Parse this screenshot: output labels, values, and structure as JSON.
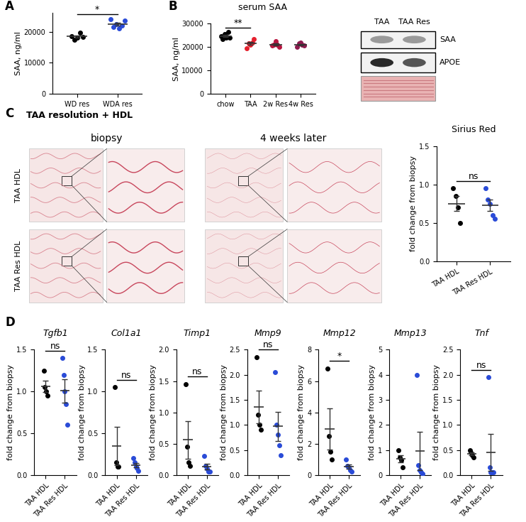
{
  "panel_labels": [
    "A",
    "B",
    "C",
    "D"
  ],
  "chart_data": [
    {
      "type": "scatter",
      "ylabel": "SAA, ng/ml",
      "categories": [
        "WD res",
        "WDA res"
      ],
      "colors": [
        "#000000",
        "#2a4bd7"
      ],
      "marker": "circle",
      "values": [
        [
          18500,
          17500,
          18200,
          19800,
          18400
        ],
        [
          24000,
          21500,
          22500,
          21000,
          22000,
          23500
        ]
      ],
      "means": [
        18480,
        22417
      ],
      "errors": [
        373,
        473
      ],
      "ylim": [
        0,
        26000
      ],
      "yticks": [
        0,
        10000,
        20000
      ],
      "annotations": [
        {
          "text": "*",
          "from": 0,
          "to": 1
        }
      ]
    },
    {
      "type": "scatter",
      "title": "serum SAA",
      "ylabel": "SAA, ng/ml",
      "categories": [
        "chow",
        "TAA",
        "2w Res",
        "4w Res"
      ],
      "colors": [
        "#000000",
        "#e5202e",
        "#b8153f",
        "#8e1b4f"
      ],
      "marker": "circle",
      "values": [
        [
          24500,
          23500,
          25500,
          24000,
          26500,
          24000
        ],
        [
          19500,
          21500,
          21000,
          22000,
          23500
        ],
        [
          20500,
          21000,
          22500,
          21000,
          20000
        ],
        [
          20000,
          21500,
          22000,
          21000,
          20500
        ]
      ],
      "means": [
        24667,
        21500,
        21000,
        21000
      ],
      "errors": [
        459,
        652,
        418,
        354
      ],
      "ylim": [
        0,
        30000
      ],
      "yticks": [
        0,
        10000,
        20000,
        30000
      ],
      "annotations": [
        {
          "text": "**",
          "from": 0,
          "to": 1
        }
      ]
    },
    {
      "type": "scatter",
      "title": "Sirius Red",
      "ylabel": "fold change from biopsy",
      "categories": [
        "TAA HDL",
        "TAA Res HDL"
      ],
      "colors": [
        "#000000",
        "#2a4bd7"
      ],
      "marker": "circle",
      "values": [
        [
          0.95,
          0.85,
          0.7,
          0.5
        ],
        [
          0.95,
          0.8,
          0.75,
          0.6,
          0.55
        ]
      ],
      "means": [
        0.75,
        0.73
      ],
      "errors": [
        0.098,
        0.072
      ],
      "ylim": [
        0,
        1.5
      ],
      "yticks": [
        {
          "value": 0,
          "label": "0.0"
        },
        {
          "value": 0.5,
          "label": "0.5"
        },
        {
          "value": 1,
          "label": "1.0"
        },
        {
          "value": 1.5,
          "label": "1.5"
        }
      ],
      "annotations": [
        {
          "text": "ns",
          "from": 0,
          "to": 1
        }
      ]
    },
    {
      "type": "scatter",
      "title": "Tgfb1",
      "ylabel": "fold change from biopsy",
      "categories": [
        "TAA HDL",
        "TAA Res HDL"
      ],
      "colors": [
        "#000000",
        "#2a4bd7"
      ],
      "marker": "circle",
      "values": [
        [
          1.25,
          1.05,
          1.0,
          0.95
        ],
        [
          1.4,
          1.2,
          1.0,
          0.85,
          0.6
        ]
      ],
      "means": [
        1.06,
        1.01
      ],
      "errors": [
        0.066,
        0.14
      ],
      "ylim": [
        0,
        1.5
      ],
      "yticks": [
        {
          "value": 0,
          "label": "0.0"
        },
        {
          "value": 0.5,
          "label": "0.5"
        },
        {
          "value": 1,
          "label": "1.0"
        },
        {
          "value": 1.5,
          "label": "1.5"
        }
      ],
      "annotations": [
        {
          "text": "ns",
          "from": 0,
          "to": 1
        }
      ]
    },
    {
      "type": "scatter",
      "title": "Col1a1",
      "ylabel": "fold change from biopsy",
      "categories": [
        "TAA HDL",
        "TAA Res HDL"
      ],
      "colors": [
        "#000000",
        "#2a4bd7"
      ],
      "marker": "circle",
      "values": [
        [
          1.05,
          0.15,
          0.1,
          0.1
        ],
        [
          0.2,
          0.15,
          0.1,
          0.08,
          0.05
        ]
      ],
      "means": [
        0.35,
        0.116
      ],
      "errors": [
        0.23,
        0.027
      ],
      "ylim": [
        0,
        1.5
      ],
      "yticks": [
        {
          "value": 0,
          "label": "0.0"
        },
        {
          "value": 0.5,
          "label": "0.5"
        },
        {
          "value": 1,
          "label": "1.0"
        },
        {
          "value": 1.5,
          "label": "1.5"
        }
      ],
      "annotations": [
        {
          "text": "ns",
          "from": 0,
          "to": 1
        }
      ]
    },
    {
      "type": "scatter",
      "title": "Timp1",
      "ylabel": "fold change from biopsy",
      "categories": [
        "TAA HDL",
        "TAA Res HDL"
      ],
      "colors": [
        "#000000",
        "#2a4bd7"
      ],
      "marker": "circle",
      "values": [
        [
          1.45,
          0.45,
          0.2,
          0.15
        ],
        [
          0.3,
          0.15,
          0.1,
          0.05,
          0.05
        ]
      ],
      "means": [
        0.56,
        0.13
      ],
      "errors": [
        0.3,
        0.046
      ],
      "ylim": [
        0,
        2
      ],
      "yticks": [
        {
          "value": 0,
          "label": "0.0"
        },
        {
          "value": 0.5,
          "label": "0.5"
        },
        {
          "value": 1,
          "label": "1.0"
        },
        {
          "value": 1.5,
          "label": "1.5"
        },
        {
          "value": 2,
          "label": "2.0"
        }
      ],
      "annotations": [
        {
          "text": "ns",
          "from": 0,
          "to": 1
        }
      ]
    },
    {
      "type": "scatter",
      "title": "Mmp9",
      "ylabel": "fold change from biopsy",
      "categories": [
        "TAA HDL",
        "TAA Res HDL"
      ],
      "colors": [
        "#000000",
        "#2a4bd7"
      ],
      "marker": "circle",
      "values": [
        [
          2.35,
          1.2,
          1.0,
          0.9
        ],
        [
          2.05,
          1.0,
          0.8,
          0.6,
          0.4
        ]
      ],
      "means": [
        1.36,
        0.97
      ],
      "errors": [
        0.33,
        0.29
      ],
      "ylim": [
        0,
        2.5
      ],
      "yticks": [
        {
          "value": 0,
          "label": "0.0"
        },
        {
          "value": 0.5,
          "label": "0.5"
        },
        {
          "value": 1,
          "label": "1.0"
        },
        {
          "value": 1.5,
          "label": "1.5"
        },
        {
          "value": 2,
          "label": "2.0"
        },
        {
          "value": 2.5,
          "label": "2.5"
        }
      ],
      "annotations": [
        {
          "text": "ns",
          "from": 0,
          "to": 1
        }
      ]
    },
    {
      "type": "scatter",
      "title": "Mmp12",
      "ylabel": "fold change from biopsy",
      "categories": [
        "TAA HDL",
        "TAA Res HDL"
      ],
      "colors": [
        "#000000",
        "#2a4bd7"
      ],
      "marker": "circle",
      "values": [
        [
          6.8,
          2.5,
          1.5,
          1.0
        ],
        [
          1.0,
          0.6,
          0.5,
          0.3,
          0.2
        ]
      ],
      "means": [
        2.95,
        0.52
      ],
      "errors": [
        1.32,
        0.14
      ],
      "ylim": [
        0,
        8
      ],
      "yticks": [
        0,
        2,
        4,
        6,
        8
      ],
      "annotations": [
        {
          "text": "*",
          "from": 0,
          "to": 1
        }
      ]
    },
    {
      "type": "scatter",
      "title": "Mmp13",
      "ylabel": "fold change from biopsy",
      "categories": [
        "TAA HDL",
        "TAA Res HDL"
      ],
      "colors": [
        "#000000",
        "#2a4bd7"
      ],
      "marker": "circle",
      "values": [
        [
          1.0,
          0.7,
          0.6,
          0.3
        ],
        [
          4.0,
          0.4,
          0.2,
          0.1,
          0.05
        ]
      ],
      "means": [
        0.65,
        0.95
      ],
      "errors": [
        0.14,
        0.77
      ],
      "ylim": [
        0,
        5
      ],
      "yticks": [
        0,
        1,
        2,
        3,
        4,
        5
      ]
    },
    {
      "type": "scatter",
      "title": "Tnf",
      "ylabel": "fold change from biopsy",
      "categories": [
        "TAA HDL",
        "TAA Res HDL"
      ],
      "colors": [
        "#000000",
        "#2a4bd7"
      ],
      "marker": "circle",
      "values": [
        [
          0.5,
          0.45,
          0.4,
          0.35
        ],
        [
          1.95,
          0.15,
          0.05,
          0.05,
          0.05
        ]
      ],
      "means": [
        0.425,
        0.45
      ],
      "errors": [
        0.032,
        0.37
      ],
      "ylim": [
        0,
        2.5
      ],
      "yticks": [
        {
          "value": 0,
          "label": "0.0"
        },
        {
          "value": 0.5,
          "label": "0.5"
        },
        {
          "value": 1,
          "label": "1.0"
        },
        {
          "value": 1.5,
          "label": "1.5"
        },
        {
          "value": 2,
          "label": "2.0"
        },
        {
          "value": 2.5,
          "label": "2.5"
        }
      ],
      "annotations": [
        {
          "text": "ns",
          "from": 0,
          "to": 1
        }
      ]
    }
  ],
  "blot": {
    "lanes": [
      "TAA",
      "TAA Res"
    ],
    "rows": [
      "SAA",
      "APOE"
    ]
  },
  "histology": {
    "title": "TAA resolution + HDL",
    "columns": [
      "biopsy",
      "4 weeks later"
    ],
    "rows": [
      "TAA HDL",
      "TAA Res HDL"
    ]
  }
}
